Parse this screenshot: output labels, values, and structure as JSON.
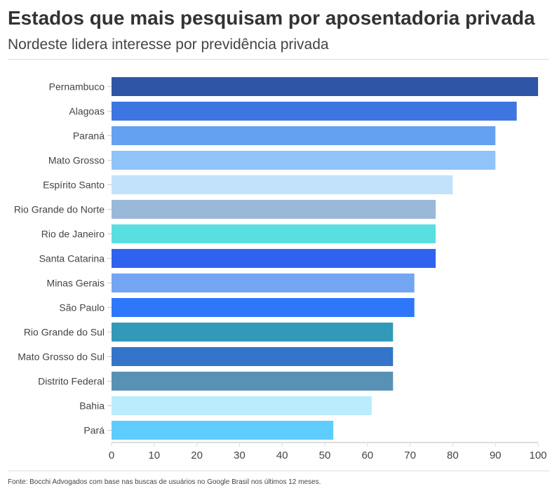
{
  "title": "Estados que mais pesquisam por aposentadoria privada",
  "subtitle": "Nordeste lidera interesse por previdência privada",
  "footer": "Fonte: Bocchi Advogados com base nas buscas de usuários no Google Brasil nos últimos 12 meses.",
  "chart_data": {
    "type": "bar",
    "orientation": "horizontal",
    "title": "Estados que mais pesquisam por aposentadoria privada",
    "subtitle": "Nordeste lidera interesse por previdência privada",
    "categories": [
      "Pernambuco",
      "Alagoas",
      "Paraná",
      "Mato Grosso",
      "Espírito Santo",
      "Rio Grande do Norte",
      "Rio de Janeiro",
      "Santa Catarina",
      "Minas Gerais",
      "São Paulo",
      "Rio Grande do Sul",
      "Mato Grosso do Sul",
      "Distrito Federal",
      "Bahia",
      "Pará"
    ],
    "values": [
      100,
      95,
      90,
      90,
      80,
      76,
      76,
      76,
      71,
      71,
      66,
      66,
      66,
      61,
      52
    ],
    "colors": [
      "#2f56a6",
      "#3f75e0",
      "#64a1f0",
      "#90c3f7",
      "#c2e2fb",
      "#9ab9d9",
      "#5adfe0",
      "#3062f0",
      "#73a5f3",
      "#2e77fb",
      "#3399b8",
      "#3474c9",
      "#5991b5",
      "#bbecfd",
      "#5ecdfe"
    ],
    "xlim": [
      0,
      100
    ],
    "xticks": [
      "0",
      "10",
      "20",
      "30",
      "40",
      "50",
      "60",
      "70",
      "80",
      "90",
      "100"
    ],
    "grid": false
  }
}
